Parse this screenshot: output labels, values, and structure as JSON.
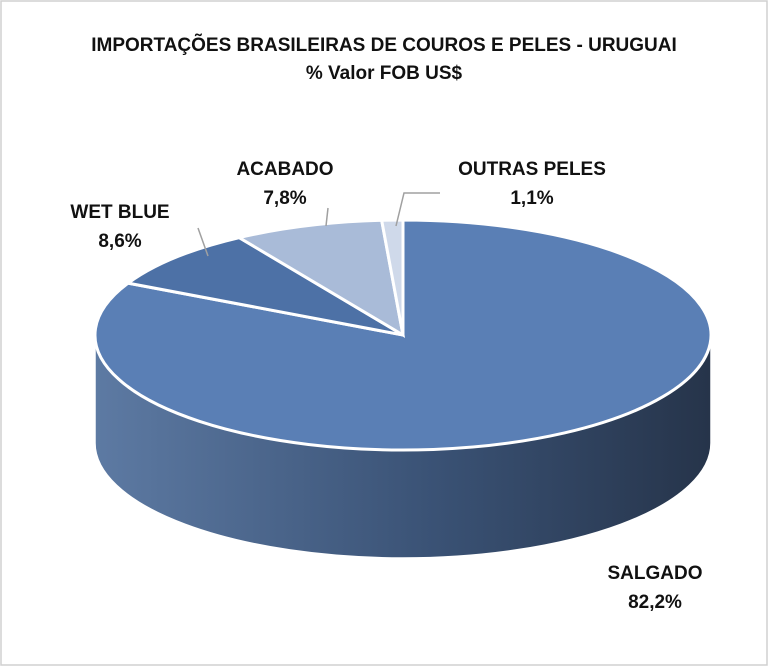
{
  "chart_data": {
    "type": "pie",
    "title": "IMPORTAÇÕES BRASILEIRAS DE COUROS E PELES - URUGUAI",
    "subtitle": "% Valor FOB US$",
    "categories": [
      "SALGADO",
      "WET BLUE",
      "ACABADO",
      "OUTRAS PELES"
    ],
    "values": [
      82.2,
      8.6,
      7.8,
      1.1
    ],
    "value_labels": [
      "82,2%",
      "8,6%",
      "7,8%",
      "1,1%"
    ],
    "colors": [
      "#5a7fb5",
      "#4d71a6",
      "#a9bbd8",
      "#cfd9ea"
    ]
  }
}
